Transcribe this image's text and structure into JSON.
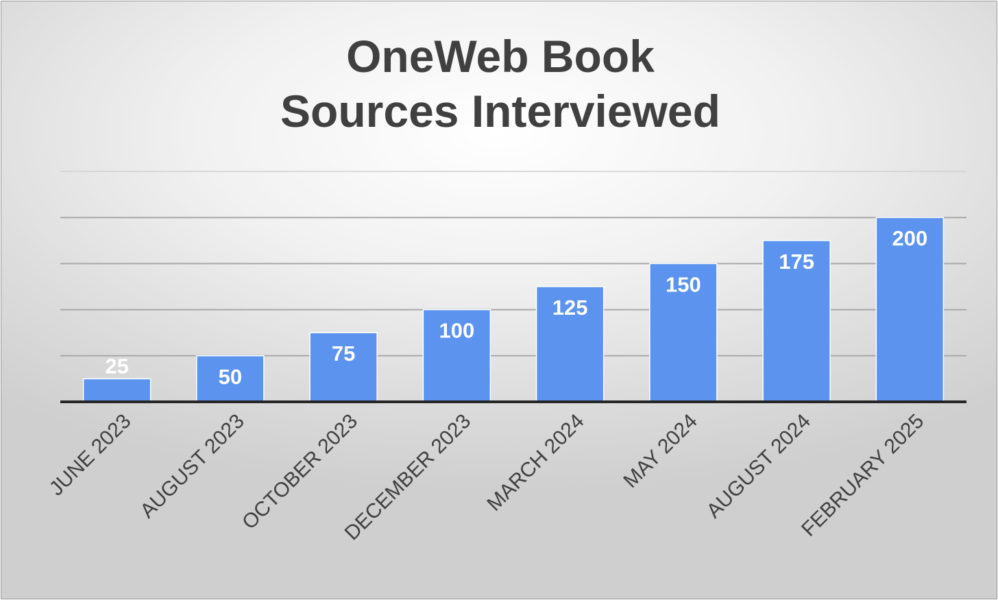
{
  "chart_data": {
    "type": "bar",
    "title_lines": [
      "OneWeb Book",
      "Sources Interviewed"
    ],
    "categories": [
      "JUNE 2023",
      "AUGUST 2023",
      "OCTOBER 2023",
      "DECEMBER 2023",
      "MARCH 2024",
      "MAY 2024",
      "AUGUST 2024",
      "FEBRUARY 2025"
    ],
    "values": [
      25,
      50,
      75,
      100,
      125,
      150,
      175,
      200
    ],
    "ylim": [
      0,
      250
    ],
    "grid": true,
    "legend": "none",
    "bar_color": "#5b93ee",
    "label_color": "#ffffff"
  }
}
